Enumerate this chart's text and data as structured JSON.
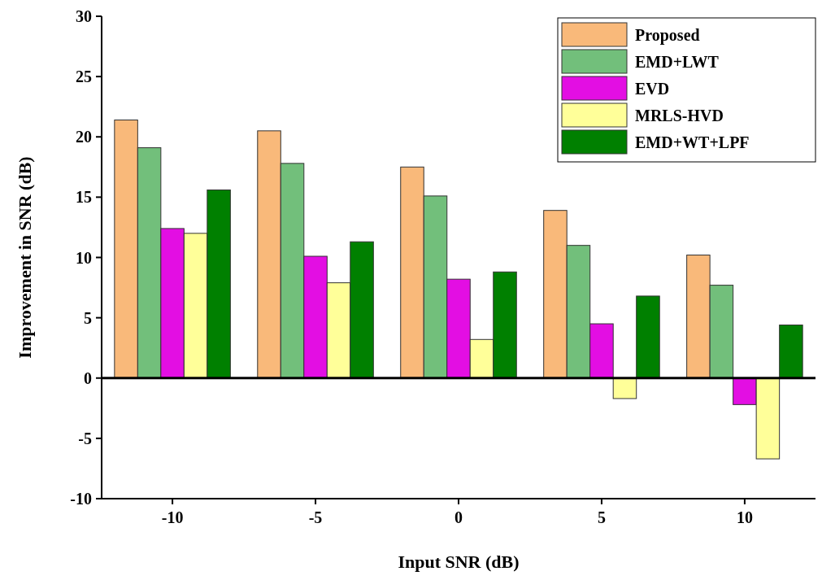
{
  "chart_data": {
    "type": "bar",
    "xlabel": "Input SNR (dB)",
    "ylabel": "Improvement in SNR (dB)",
    "categories": [
      "-10",
      "-5",
      "0",
      "5",
      "10"
    ],
    "series": [
      {
        "name": "Proposed",
        "color": "#f9b97a",
        "values": [
          21.4,
          20.5,
          17.5,
          13.9,
          10.2
        ]
      },
      {
        "name": "EMD+LWT",
        "color": "#72bf7b",
        "values": [
          19.1,
          17.8,
          15.1,
          11.0,
          7.7
        ]
      },
      {
        "name": "EVD",
        "color": "#e30ee3",
        "values": [
          12.4,
          10.1,
          8.2,
          4.5,
          -2.2
        ]
      },
      {
        "name": "MRLS-HVD",
        "color": "#ffff99",
        "values": [
          12.0,
          7.9,
          3.2,
          -1.7,
          -6.7
        ]
      },
      {
        "name": "EMD+WT+LPF",
        "color": "#008000",
        "values": [
          15.6,
          11.3,
          8.8,
          6.8,
          4.4
        ]
      }
    ],
    "ylim": [
      -10,
      30
    ],
    "yticks": [
      -10,
      -5,
      0,
      5,
      10,
      15,
      20,
      25,
      30
    ],
    "ref_lines": [
      {
        "axis": "y",
        "value": 0
      }
    ],
    "grid": false,
    "legend": "top right"
  }
}
